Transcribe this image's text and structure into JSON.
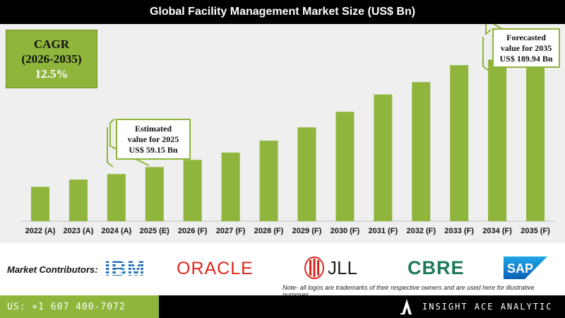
{
  "colors": {
    "bar": "#8fb53c",
    "title_bg": "#000000",
    "chart_bg": "#efefef",
    "footer_left_bg": "#8fb53c",
    "footer_right_bg": "#000000"
  },
  "cagr": {
    "line1": "CAGR",
    "line2": "(2026-2035)",
    "value": "12.5%"
  },
  "callouts": {
    "estimated": {
      "line1": "Estimated",
      "line2": "value for 2025",
      "line3": "US$ 59.15 Bn"
    },
    "forecasted": {
      "line1": "Forecasted",
      "line2": "value for 2035",
      "line3": "US$ 189.94 Bn"
    }
  },
  "contributors": {
    "label": "Market Contributors:",
    "logos": [
      "IBM",
      "ORACLE",
      "JLL",
      "CBRE",
      "SAP"
    ],
    "note": "Note- all logos are trademarks of their respective owners and are used here for illustrative purposes"
  },
  "footer": {
    "phone": "US: +1 607 400-7072",
    "brand": "INSIGHT ACE ANALYTIC"
  },
  "chart_data": {
    "type": "bar",
    "title": "Global Facility Management Market Size (US$ Bn)",
    "categories": [
      "2022 (A)",
      "2023 (A)",
      "2024 (A)",
      "2025 (E)",
      "2026 (F)",
      "2027 (F)",
      "2028 (F)",
      "2029 (F)",
      "2030 (F)",
      "2031 (F)",
      "2032 (F)",
      "2033 (F)",
      "2034 (F)",
      "2035 (F)"
    ],
    "values": [
      37.5,
      45.5,
      51.5,
      59.15,
      67.0,
      75.0,
      88.0,
      102.5,
      119.5,
      138.5,
      152.0,
      170.5,
      176.5,
      189.94
    ],
    "ylim": [
      0,
      200
    ],
    "grid": false,
    "legend": "none",
    "xlabel": "",
    "ylabel": ""
  }
}
